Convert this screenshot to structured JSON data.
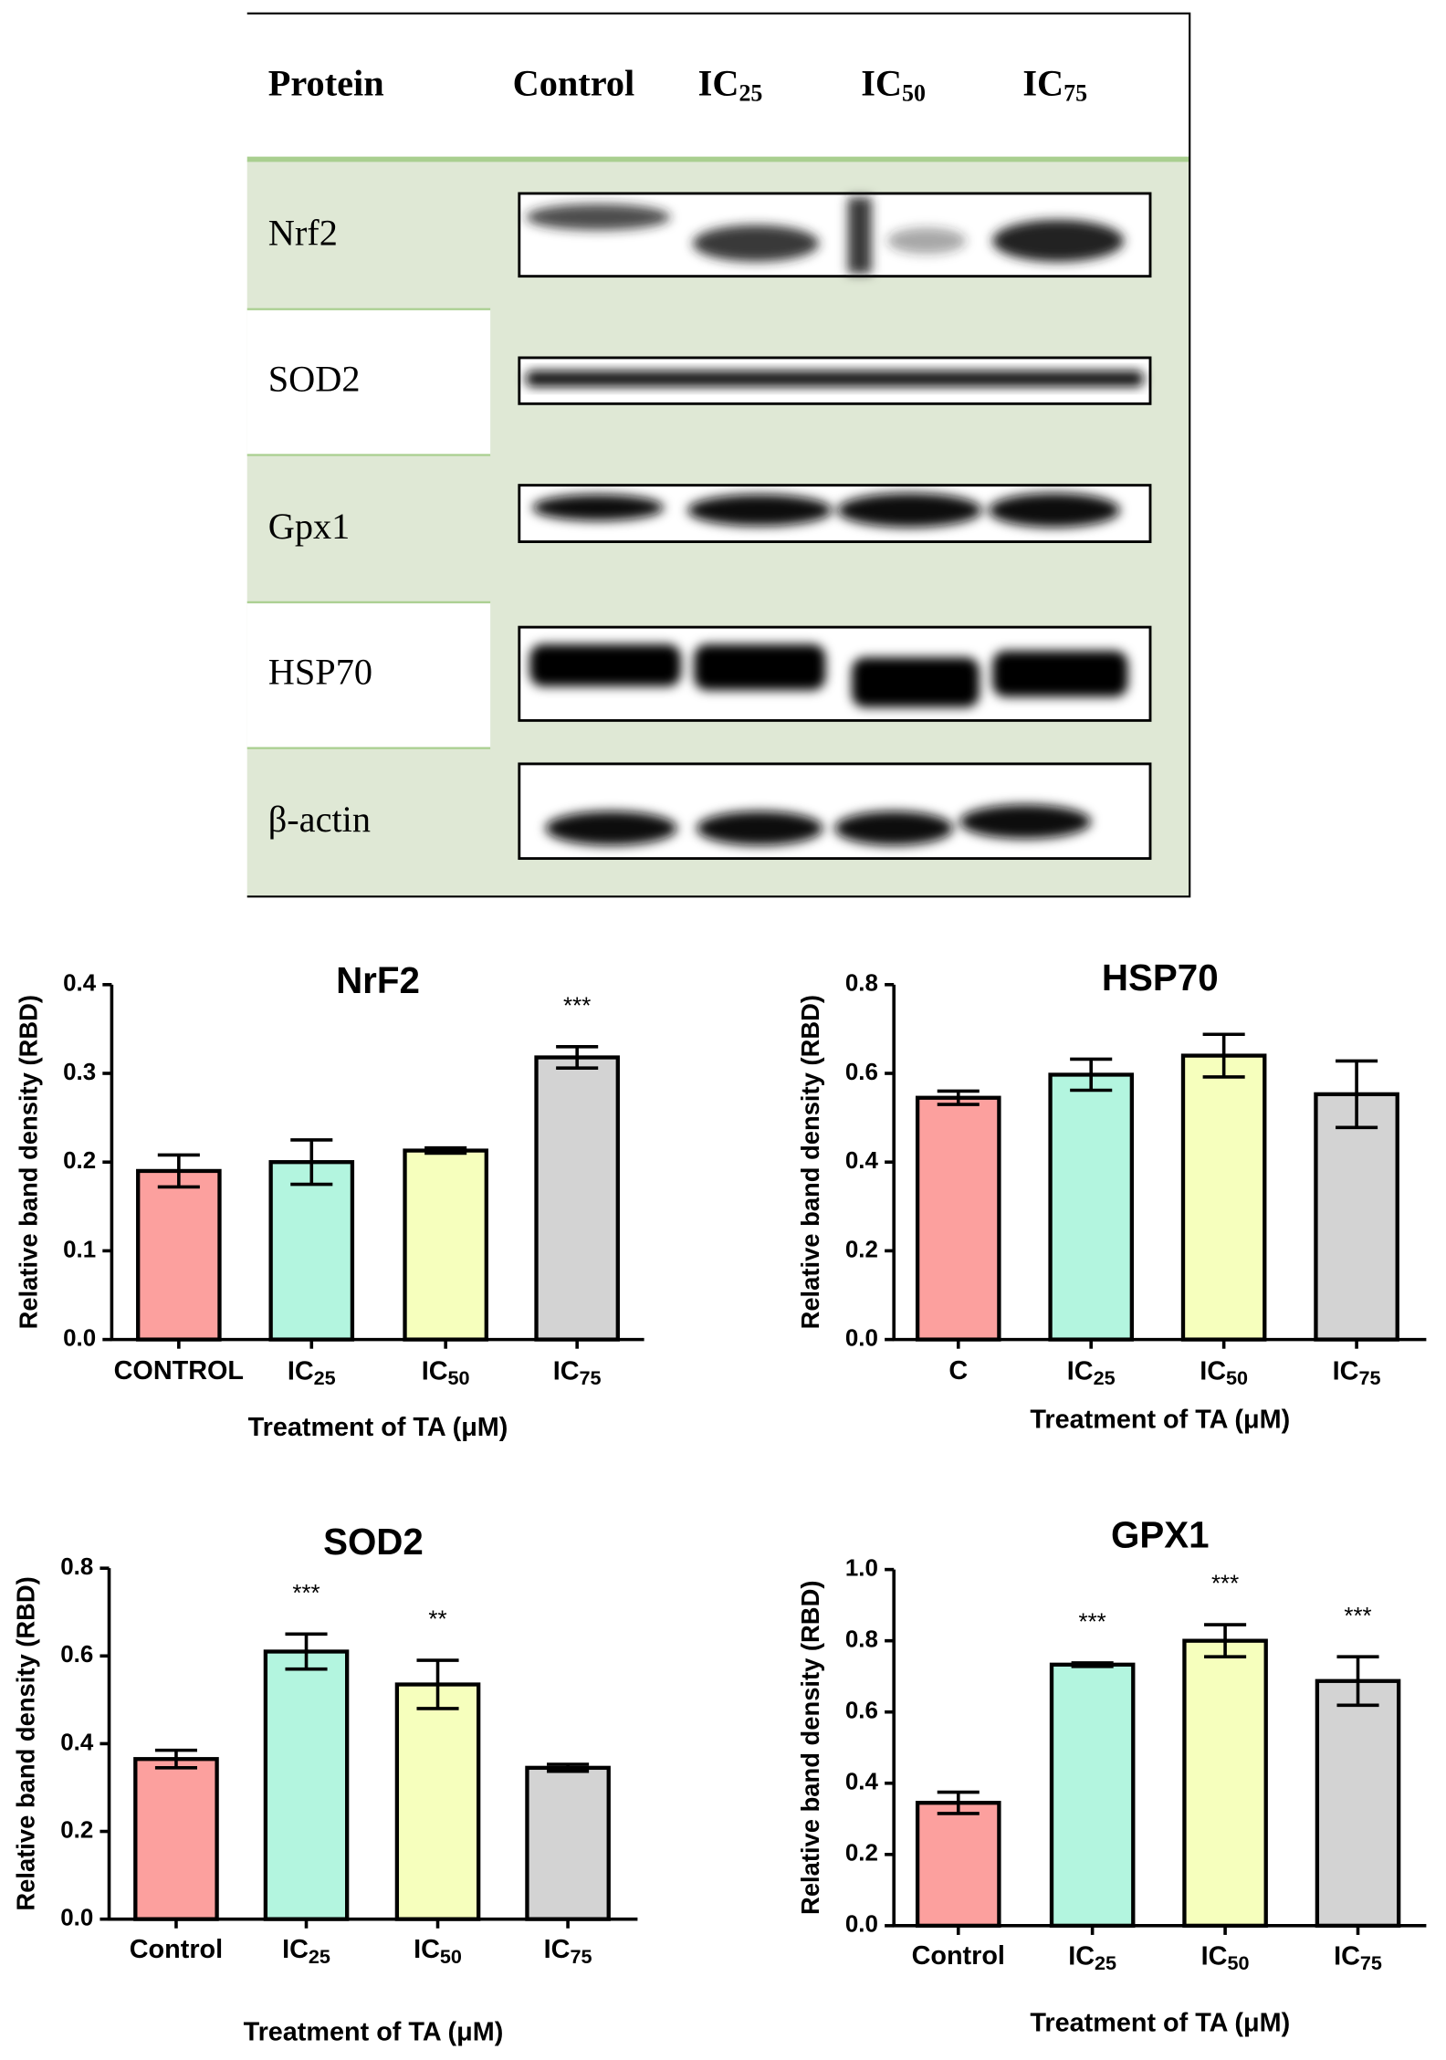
{
  "blot": {
    "header": [
      "Protein",
      "Control",
      "IC25",
      "IC50",
      "IC75"
    ],
    "rows": [
      "Nrf2",
      "SOD2",
      "Gpx1",
      "HSP70",
      "β-actin"
    ]
  },
  "chart_data": [
    {
      "type": "bar",
      "title": "NrF2",
      "y_label": "Relative band density (RBD)",
      "x_label": "Treatment of TA (μM)",
      "categories": [
        "CONTROL",
        "IC25",
        "IC50",
        "IC75"
      ],
      "values": [
        0.19,
        0.2,
        0.213,
        0.318
      ],
      "errors": [
        0.018,
        0.025,
        0.003,
        0.012
      ],
      "colors": [
        "#fca09e",
        "#b3f5df",
        "#f6ffbd",
        "#d3d3d3"
      ],
      "significance": [
        null,
        null,
        null,
        "***"
      ],
      "ylim": [
        0,
        0.4
      ],
      "yticks": [
        {
          "value": 0,
          "label": "0.0"
        },
        0.1,
        0.2,
        0.3,
        0.4
      ]
    },
    {
      "type": "bar",
      "title": "HSP70",
      "y_label": "Relative band density (RBD)",
      "x_label": "Treatment of TA (μM)",
      "categories": [
        "C",
        "IC25",
        "IC50",
        "IC75"
      ],
      "values": [
        0.545,
        0.597,
        0.64,
        0.553
      ],
      "errors": [
        0.015,
        0.035,
        0.048,
        0.075
      ],
      "colors": [
        "#fca09e",
        "#b3f5df",
        "#f6ffbd",
        "#d3d3d3"
      ],
      "significance": [
        null,
        null,
        null,
        null
      ],
      "ylim": [
        0,
        0.8
      ],
      "yticks": [
        {
          "value": 0,
          "label": "0.0"
        },
        0.2,
        0.4,
        0.6,
        0.8
      ]
    },
    {
      "type": "bar",
      "title": "SOD2",
      "y_label": "Relative band density (RBD)",
      "x_label": "Treatment of TA (μM)",
      "categories": [
        "Control",
        "IC25",
        "IC50",
        "IC75"
      ],
      "values": [
        0.365,
        0.61,
        0.535,
        0.345
      ],
      "errors": [
        0.02,
        0.04,
        0.055,
        0.008
      ],
      "colors": [
        "#fca09e",
        "#b3f5df",
        "#f6ffbd",
        "#d3d3d3"
      ],
      "significance": [
        null,
        "***",
        "**",
        null
      ],
      "ylim": [
        0,
        0.8
      ],
      "yticks": [
        {
          "value": 0,
          "label": "0.0"
        },
        0.2,
        0.4,
        0.6,
        0.8
      ]
    },
    {
      "type": "bar",
      "title": "GPX1",
      "y_label": "Relative band density (RBD)",
      "x_label": "Treatment of TA (μM)",
      "categories": [
        "Control",
        "IC25",
        "IC50",
        "IC75"
      ],
      "values": [
        0.345,
        0.733,
        0.8,
        0.687
      ],
      "errors": [
        0.03,
        0.005,
        0.045,
        0.068
      ],
      "colors": [
        "#fca09e",
        "#b3f5df",
        "#f6ffbd",
        "#d3d3d3"
      ],
      "significance": [
        null,
        "***",
        "***",
        "***"
      ],
      "ylim": [
        0,
        1
      ],
      "yticks": [
        {
          "value": 0,
          "label": "0.0"
        },
        0.2,
        0.4,
        0.6,
        0.8,
        {
          "value": 1,
          "label": "1.0"
        }
      ]
    }
  ]
}
